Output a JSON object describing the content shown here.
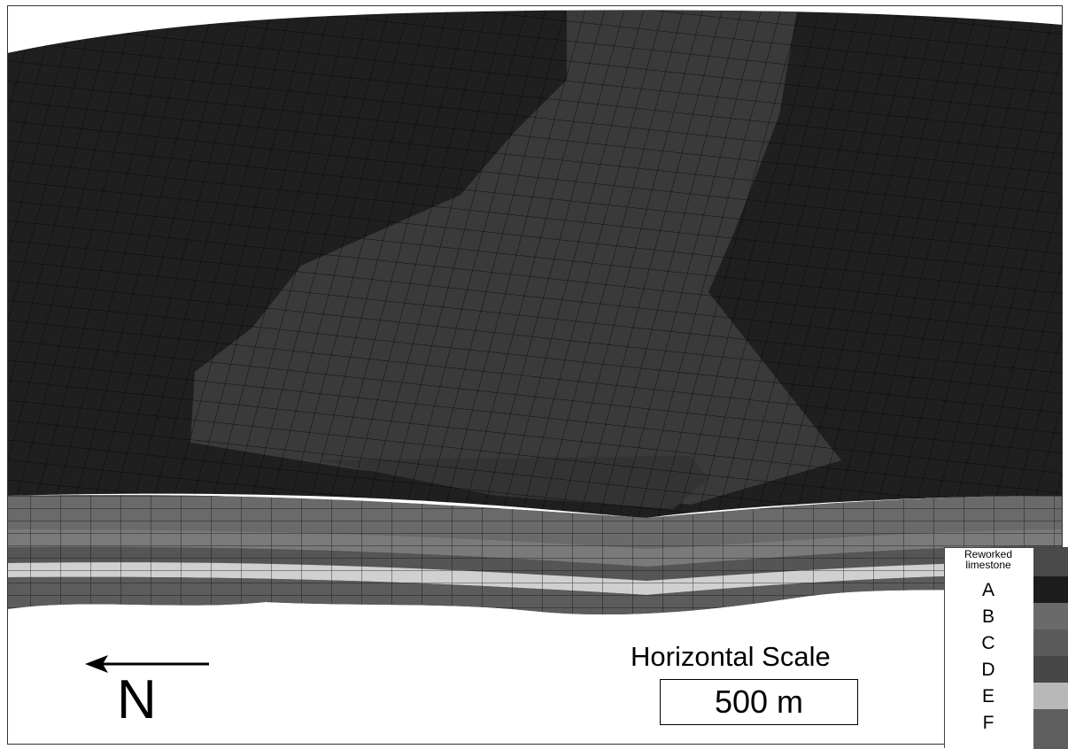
{
  "north": {
    "label": "N"
  },
  "scale": {
    "title": "Horizontal Scale",
    "value": "500 m"
  },
  "legend": {
    "title": "Reworked limestone",
    "items": [
      {
        "label": "",
        "color": "#4a4a4a"
      },
      {
        "label": "A",
        "color": "#1c1c1c"
      },
      {
        "label": "B",
        "color": "#6a6a6a"
      },
      {
        "label": "C",
        "color": "#5a5a5a"
      },
      {
        "label": "D",
        "color": "#474747"
      },
      {
        "label": "E",
        "color": "#b8b8b8"
      },
      {
        "label": "F",
        "color": "#5e5e5e"
      }
    ]
  },
  "colors": {
    "background": "#ffffff",
    "surface_dark": "#1e1e1e",
    "surface_mid": "#363636",
    "grid_line": "#000000"
  }
}
